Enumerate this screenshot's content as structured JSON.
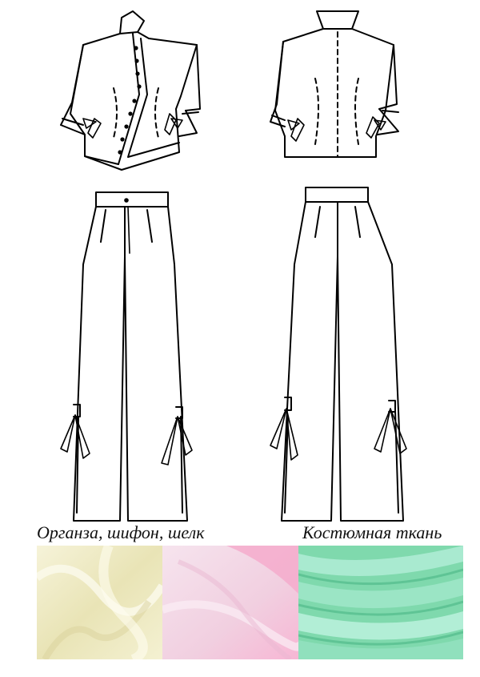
{
  "fabrics": {
    "light_label": "Органза, шифон, шелк",
    "suit_label": "Костюмная ткань",
    "swatches": [
      {
        "name": "cream-organza",
        "color": "#f3f0cf"
      },
      {
        "name": "pink-chiffon",
        "color": "#f2c4dc"
      },
      {
        "name": "mint-suiting",
        "color": "#8fe0b8"
      }
    ]
  }
}
